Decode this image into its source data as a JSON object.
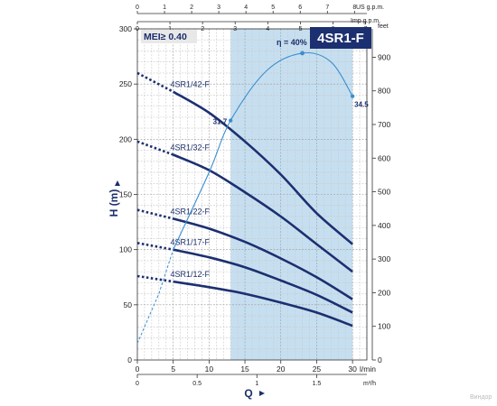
{
  "chart_data": {
    "type": "line",
    "title": "4SR1-F",
    "subtitle": "MEI≥ 0.40",
    "watermark": "Виндор",
    "x_axis": {
      "label": "Q",
      "unit": "l/min",
      "range": [
        0,
        32
      ],
      "ticks": [
        "0",
        "5",
        "10",
        "15",
        "20",
        "25",
        "30"
      ],
      "tick_values": [
        0,
        5,
        10,
        15,
        20,
        25,
        30
      ]
    },
    "x_axis_m3h": {
      "unit": "m³/h",
      "ticks": [
        "0",
        "0.5",
        "1",
        "1.5"
      ],
      "tick_values": [
        0,
        0.5,
        1,
        1.5
      ]
    },
    "x_axis_us_gpm": {
      "unit": "US g.p.m.",
      "ticks": [
        "0",
        "1",
        "2",
        "3",
        "4",
        "5",
        "6",
        "7",
        "8"
      ],
      "tick_values": [
        0,
        1,
        2,
        3,
        4,
        5,
        6,
        7,
        8
      ]
    },
    "x_axis_imp_gpm": {
      "unit": "Imp g.p.m.",
      "ticks": [
        "0",
        "1",
        "2",
        "3",
        "4",
        "5",
        "6",
        "7"
      ],
      "tick_values": [
        0,
        1,
        2,
        3,
        4,
        5,
        6,
        7
      ]
    },
    "y_axis": {
      "label": "H (m)",
      "range": [
        0,
        300
      ],
      "ticks": [
        "0",
        "50",
        "100",
        "150",
        "200",
        "250",
        "300"
      ],
      "tick_values": [
        0,
        50,
        100,
        150,
        200,
        250,
        300
      ]
    },
    "y_axis_feet": {
      "unit": "feet",
      "ticks": [
        "0",
        "100",
        "200",
        "300",
        "400",
        "500",
        "600",
        "700",
        "800",
        "900"
      ],
      "tick_values": [
        0,
        100,
        200,
        300,
        400,
        500,
        600,
        700,
        800,
        900
      ]
    },
    "operating_range": [
      13,
      30
    ],
    "series": [
      {
        "name": "4SR1/42-F",
        "dotted": [
          [
            0,
            260
          ],
          [
            5,
            243
          ]
        ],
        "solid": [
          [
            5,
            243
          ],
          [
            10,
            224
          ],
          [
            15,
            198
          ],
          [
            20,
            168
          ],
          [
            25,
            133
          ],
          [
            30,
            105
          ]
        ]
      },
      {
        "name": "4SR1/32-F",
        "dotted": [
          [
            0,
            198
          ],
          [
            5,
            186
          ]
        ],
        "solid": [
          [
            5,
            186
          ],
          [
            10,
            172
          ],
          [
            15,
            152
          ],
          [
            20,
            130
          ],
          [
            25,
            105
          ],
          [
            30,
            80
          ]
        ]
      },
      {
        "name": "4SR1/22-F",
        "dotted": [
          [
            0,
            136
          ],
          [
            5,
            128
          ]
        ],
        "solid": [
          [
            5,
            128
          ],
          [
            10,
            119
          ],
          [
            15,
            107
          ],
          [
            20,
            92
          ],
          [
            25,
            75
          ],
          [
            30,
            55
          ]
        ]
      },
      {
        "name": "4SR1/17-F",
        "dotted": [
          [
            0,
            106
          ],
          [
            5,
            100
          ]
        ],
        "solid": [
          [
            5,
            100
          ],
          [
            10,
            93
          ],
          [
            15,
            84
          ],
          [
            20,
            72
          ],
          [
            25,
            59
          ],
          [
            30,
            43
          ]
        ]
      },
      {
        "name": "4SR1/12-F",
        "dotted": [
          [
            0,
            76
          ],
          [
            5,
            71
          ]
        ],
        "solid": [
          [
            5,
            71
          ],
          [
            10,
            66
          ],
          [
            15,
            60
          ],
          [
            20,
            52
          ],
          [
            25,
            43
          ],
          [
            30,
            31
          ]
        ]
      }
    ],
    "efficiency_curve": {
      "label": "η = 40%",
      "dashed": [
        [
          0,
          15
        ],
        [
          3,
          60
        ],
        [
          5,
          100
        ]
      ],
      "solid": [
        [
          5,
          100
        ],
        [
          10,
          170
        ],
        [
          13,
          217
        ],
        [
          18,
          262
        ],
        [
          23,
          278
        ],
        [
          27,
          270
        ],
        [
          30,
          239
        ]
      ],
      "annotations": [
        {
          "text": "31.7",
          "x": 13,
          "y": 217
        },
        {
          "text": "34.5",
          "x": 30,
          "y": 239
        }
      ]
    }
  }
}
